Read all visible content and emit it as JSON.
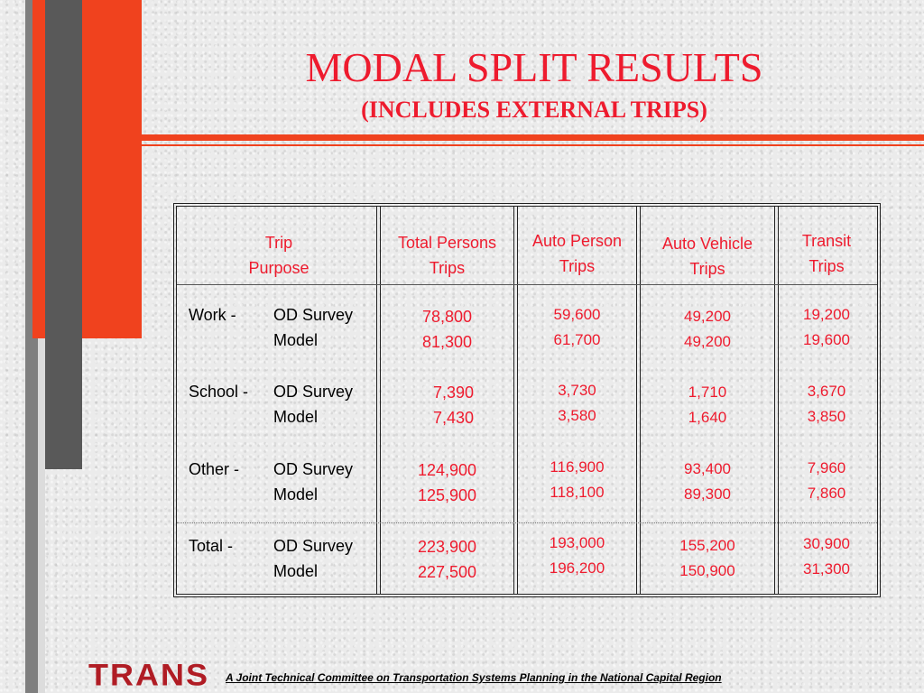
{
  "slide": {
    "title": "MODAL SPLIT RESULTS",
    "subtitle": "(INCLUDES EXTERNAL TRIPS)"
  },
  "table": {
    "headers": {
      "trip_purpose": [
        "Trip",
        "Purpose"
      ],
      "total_persons": [
        "Total Persons",
        "Trips"
      ],
      "auto_person": [
        "Auto Person",
        "Trips"
      ],
      "auto_vehicle": [
        "Auto Vehicle",
        "Trips"
      ],
      "transit": [
        "Transit",
        "Trips"
      ]
    },
    "groups": [
      {
        "purpose": "Work -",
        "rows": [
          {
            "source": "OD Survey",
            "total": "78,800",
            "auto_person": "59,600",
            "auto_vehicle": "49,200",
            "transit": "19,200"
          },
          {
            "source": "Model",
            "total": "81,300",
            "auto_person": "61,700",
            "auto_vehicle": "49,200",
            "transit": "19,600"
          }
        ]
      },
      {
        "purpose": "School -",
        "rows": [
          {
            "source": "OD Survey",
            "total": "7,390",
            "auto_person": "3,730",
            "auto_vehicle": "1,710",
            "transit": "3,670"
          },
          {
            "source": "Model",
            "total": "7,430",
            "auto_person": "3,580",
            "auto_vehicle": "1,640",
            "transit": "3,850"
          }
        ]
      },
      {
        "purpose": "Other -",
        "rows": [
          {
            "source": "OD Survey",
            "total": "124,900",
            "auto_person": "116,900",
            "auto_vehicle": "93,400",
            "transit": "7,960"
          },
          {
            "source": "Model",
            "total": "125,900",
            "auto_person": "118,100",
            "auto_vehicle": "89,300",
            "transit": "7,860"
          }
        ]
      },
      {
        "purpose": "Total -",
        "rows": [
          {
            "source": "OD Survey",
            "total": "223,900",
            "auto_person": "193,000",
            "auto_vehicle": "155,200",
            "transit": "30,900"
          },
          {
            "source": "Model",
            "total": "227,500",
            "auto_person": "196,200",
            "auto_vehicle": "150,900",
            "transit": "31,300"
          }
        ]
      }
    ]
  },
  "footer": {
    "logo": "TRANS",
    "text": "A Joint Technical Committee on Transportation Systems Planning in the National Capital Region"
  },
  "colors": {
    "accent_red": "#ee1b2e",
    "bar_orange": "#f0421e",
    "bar_dark": "#595959",
    "logo_red": "#b01c24"
  }
}
